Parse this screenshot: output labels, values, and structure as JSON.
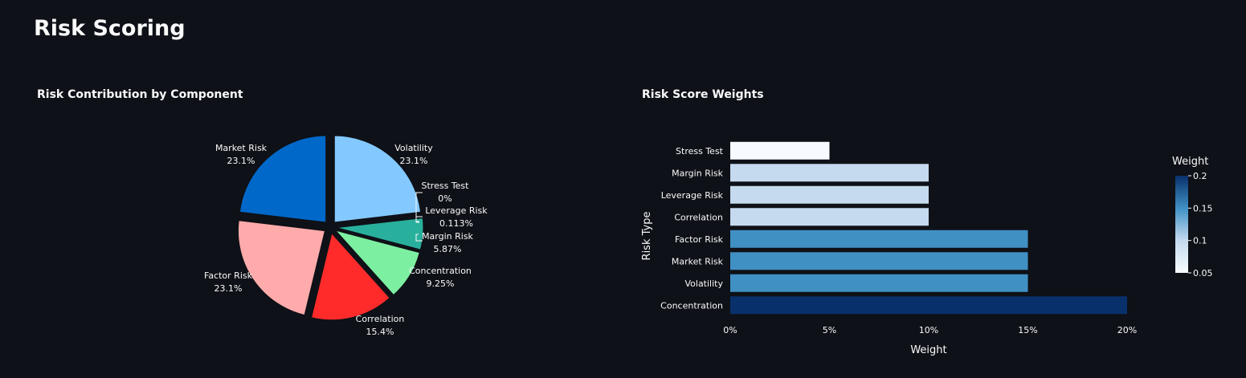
{
  "page": {
    "title": "Risk Scoring"
  },
  "chart_data": [
    {
      "type": "pie",
      "title": "Risk Contribution by Component",
      "labels": [
        "Market Risk",
        "Volatility",
        "Stress Test",
        "Leverage Risk",
        "Margin Risk",
        "Concentration",
        "Correlation",
        "Factor Risk"
      ],
      "values": [
        23.1,
        23.1,
        0,
        0.113,
        5.87,
        9.25,
        15.4,
        23.1
      ],
      "value_labels": [
        "23.1%",
        "23.1%",
        "0%",
        "0.113%",
        "5.87%",
        "9.25%",
        "15.4%",
        "23.1%"
      ],
      "colors": [
        "#0068c9",
        "#83c9ff",
        "#ff2b2b",
        "#ffabab",
        "#29b09d",
        "#7defa1",
        "#ff2b2b",
        "#ffabab"
      ],
      "pulled": true
    },
    {
      "type": "bar",
      "orientation": "horizontal",
      "title": "Risk Score Weights",
      "categories": [
        "Stress Test",
        "Margin Risk",
        "Leverage Risk",
        "Correlation",
        "Factor Risk",
        "Market Risk",
        "Volatility",
        "Concentration"
      ],
      "values": [
        0.05,
        0.1,
        0.1,
        0.1,
        0.15,
        0.15,
        0.15,
        0.2
      ],
      "xlabel": "Weight",
      "ylabel": "Risk Type",
      "xlim": [
        0,
        0.2
      ],
      "x_ticks": [
        "0%",
        "5%",
        "10%",
        "15%",
        "20%"
      ],
      "colorscale": "Blues",
      "colorbar": {
        "title": "Weight",
        "range": [
          0.05,
          0.2
        ],
        "tick_labels": [
          "0.05",
          "0.1",
          "0.15",
          "0.2"
        ]
      },
      "grid": false
    }
  ]
}
